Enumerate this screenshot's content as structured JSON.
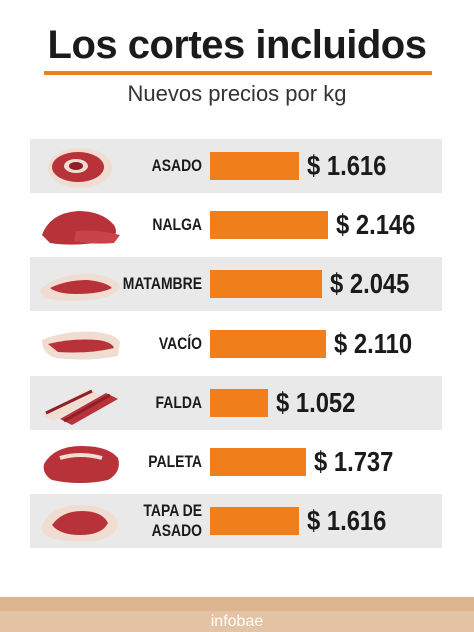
{
  "header": {
    "title": "Los cortes incluidos",
    "subtitle": "Nuevos precios por kg"
  },
  "colors": {
    "accent": "#f07f1b",
    "meat": "#b8323a",
    "fat": "#f1dcd2",
    "band": "#e9e9e9"
  },
  "chart_data": {
    "type": "bar",
    "orientation": "horizontal",
    "title": "Los cortes incluidos",
    "subtitle": "Nuevos precios por kg",
    "categories": [
      "ASADO",
      "NALGA",
      "MATAMBRE",
      "VACÍO",
      "FALDA",
      "PALETA",
      "TAPA DE\nASADO"
    ],
    "values": [
      1616,
      2146,
      2045,
      2110,
      1052,
      1737,
      1616
    ],
    "value_labels": [
      "$ 1.616",
      "$ 2.146",
      "$ 2.045",
      "$ 2.110",
      "$ 1.052",
      "$ 1.737",
      "$ 1.616"
    ],
    "icons": [
      "asado-meat-icon",
      "nalga-meat-icon",
      "matambre-meat-icon",
      "vacio-meat-icon",
      "falda-meat-icon",
      "paleta-meat-icon",
      "tapa-de-asado-meat-icon"
    ],
    "xlim": [
      0,
      2146
    ],
    "grid": false
  },
  "footer": {
    "brand": "infobae"
  }
}
